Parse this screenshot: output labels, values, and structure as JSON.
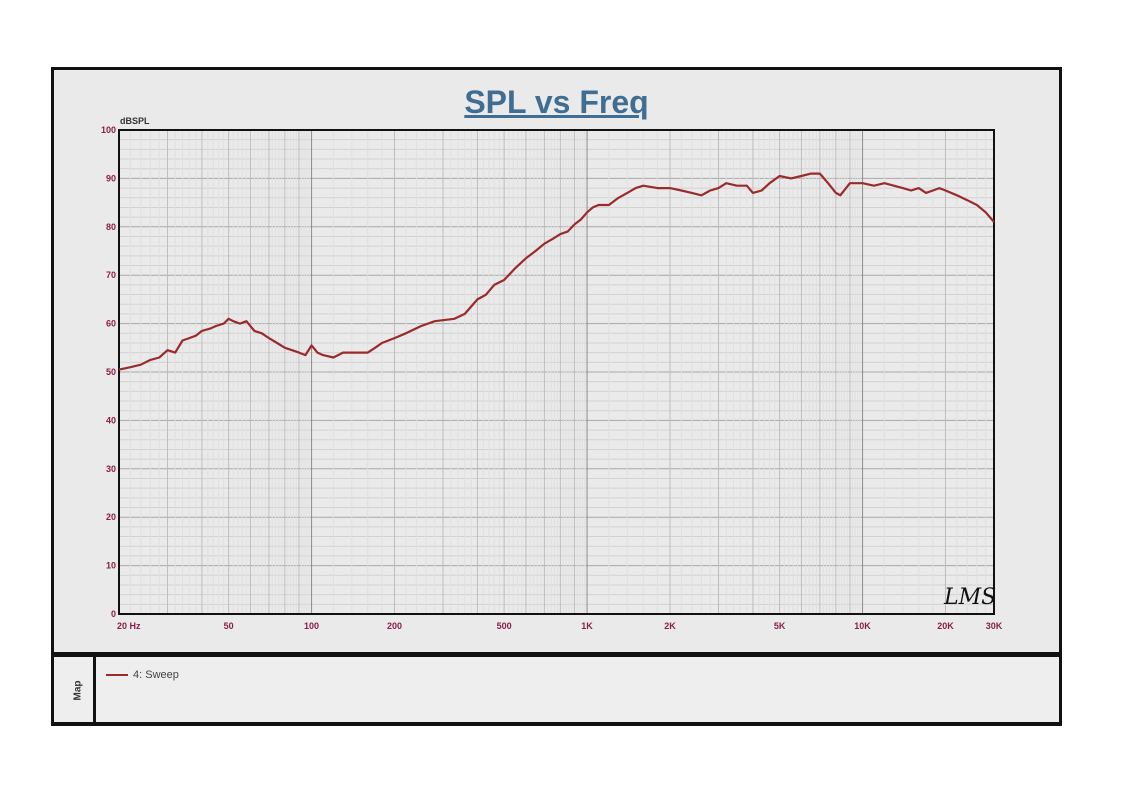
{
  "chart_data": {
    "type": "line",
    "title": "SPL vs Freq",
    "ylabel": "dBSPL",
    "xlabel": "",
    "xscale": "log",
    "xlim": [
      20,
      30000
    ],
    "ylim": [
      0,
      100
    ],
    "grid": true,
    "y_ticks": [
      0,
      10,
      20,
      30,
      40,
      50,
      60,
      70,
      80,
      90,
      100
    ],
    "x_ticks": [
      {
        "value": 20,
        "label": "20 Hz"
      },
      {
        "value": 50,
        "label": "50"
      },
      {
        "value": 100,
        "label": "100"
      },
      {
        "value": 200,
        "label": "200"
      },
      {
        "value": 500,
        "label": "500"
      },
      {
        "value": 1000,
        "label": "1K"
      },
      {
        "value": 2000,
        "label": "2K"
      },
      {
        "value": 5000,
        "label": "5K"
      },
      {
        "value": 10000,
        "label": "10K"
      },
      {
        "value": 20000,
        "label": "20K"
      },
      {
        "value": 30000,
        "label": "30K"
      }
    ],
    "annotation": "LMS",
    "series": [
      {
        "name": "4: Sweep",
        "color": "#9b2b2b",
        "points": [
          [
            20,
            50.5
          ],
          [
            22,
            51
          ],
          [
            24,
            51.5
          ],
          [
            26,
            52.5
          ],
          [
            28,
            53
          ],
          [
            30,
            54.5
          ],
          [
            32,
            54
          ],
          [
            34,
            56.5
          ],
          [
            36,
            57
          ],
          [
            38,
            57.5
          ],
          [
            40,
            58.5
          ],
          [
            43,
            59
          ],
          [
            45,
            59.5
          ],
          [
            48,
            60
          ],
          [
            50,
            61
          ],
          [
            52,
            60.5
          ],
          [
            55,
            60
          ],
          [
            58,
            60.5
          ],
          [
            62,
            58.5
          ],
          [
            66,
            58
          ],
          [
            70,
            57
          ],
          [
            75,
            56
          ],
          [
            80,
            55
          ],
          [
            85,
            54.5
          ],
          [
            90,
            54
          ],
          [
            95,
            53.5
          ],
          [
            100,
            55.5
          ],
          [
            105,
            54
          ],
          [
            110,
            53.5
          ],
          [
            120,
            53
          ],
          [
            130,
            54
          ],
          [
            140,
            54
          ],
          [
            150,
            54
          ],
          [
            160,
            54
          ],
          [
            170,
            55
          ],
          [
            180,
            56
          ],
          [
            200,
            57
          ],
          [
            220,
            58
          ],
          [
            250,
            59.5
          ],
          [
            280,
            60.5
          ],
          [
            300,
            60.7
          ],
          [
            330,
            61
          ],
          [
            360,
            62
          ],
          [
            400,
            65
          ],
          [
            430,
            66
          ],
          [
            460,
            68
          ],
          [
            500,
            69
          ],
          [
            550,
            71.5
          ],
          [
            600,
            73.5
          ],
          [
            650,
            75
          ],
          [
            700,
            76.5
          ],
          [
            750,
            77.5
          ],
          [
            800,
            78.5
          ],
          [
            850,
            79
          ],
          [
            900,
            80.5
          ],
          [
            950,
            81.5
          ],
          [
            1000,
            83
          ],
          [
            1050,
            84
          ],
          [
            1100,
            84.5
          ],
          [
            1200,
            84.5
          ],
          [
            1300,
            86
          ],
          [
            1400,
            87
          ],
          [
            1500,
            88
          ],
          [
            1600,
            88.5
          ],
          [
            1800,
            88
          ],
          [
            2000,
            88
          ],
          [
            2200,
            87.5
          ],
          [
            2400,
            87
          ],
          [
            2600,
            86.5
          ],
          [
            2800,
            87.5
          ],
          [
            3000,
            88
          ],
          [
            3200,
            89
          ],
          [
            3500,
            88.5
          ],
          [
            3800,
            88.5
          ],
          [
            4000,
            87
          ],
          [
            4300,
            87.5
          ],
          [
            4600,
            89
          ],
          [
            5000,
            90.5
          ],
          [
            5500,
            90
          ],
          [
            6000,
            90.5
          ],
          [
            6500,
            91
          ],
          [
            7000,
            91
          ],
          [
            7500,
            89
          ],
          [
            8000,
            87
          ],
          [
            8300,
            86.5
          ],
          [
            9000,
            89
          ],
          [
            10000,
            89
          ],
          [
            11000,
            88.5
          ],
          [
            12000,
            89
          ],
          [
            13000,
            88.5
          ],
          [
            14000,
            88
          ],
          [
            15000,
            87.5
          ],
          [
            16000,
            88
          ],
          [
            17000,
            87
          ],
          [
            18000,
            87.5
          ],
          [
            19000,
            88
          ],
          [
            20000,
            87.5
          ],
          [
            22000,
            86.5
          ],
          [
            24000,
            85.5
          ],
          [
            26000,
            84.5
          ],
          [
            28000,
            83
          ],
          [
            30000,
            81
          ]
        ]
      }
    ]
  },
  "legend": {
    "side_label": "Map",
    "entry_label": "4: Sweep"
  }
}
